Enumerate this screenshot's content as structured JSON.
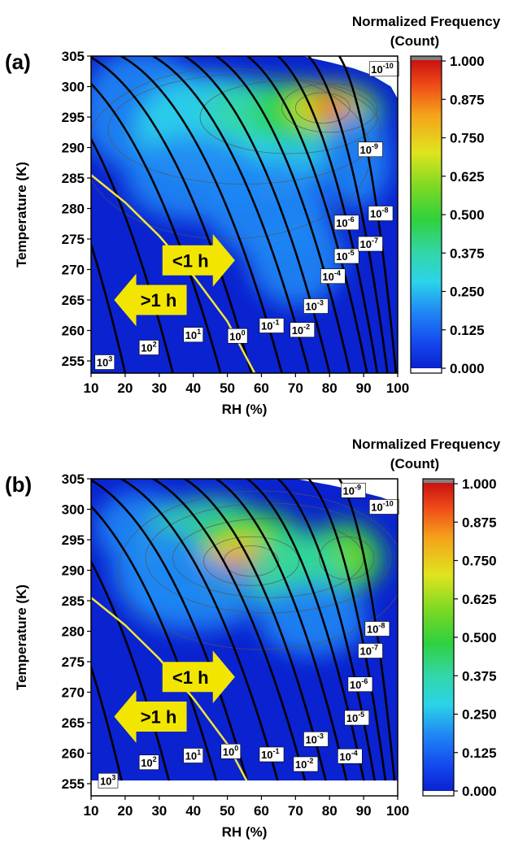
{
  "figure": {
    "cbar_title_line1": "Normalized Frequency",
    "cbar_title_line2": "(Count)"
  },
  "chart_data": [
    {
      "type": "heatmap",
      "panel": "(a)",
      "xlabel": "RH (%)",
      "ylabel": "Temperature (K)",
      "xlim": [
        10,
        100
      ],
      "ylim": [
        253,
        305
      ],
      "xticks": [
        10,
        20,
        30,
        40,
        50,
        60,
        70,
        80,
        90,
        100
      ],
      "yticks": [
        255,
        260,
        265,
        270,
        275,
        280,
        285,
        290,
        295,
        300,
        305
      ],
      "colorbar": {
        "title": "Normalized Frequency (Count)",
        "ticks": [
          "1.000",
          "0.875",
          "0.750",
          "0.625",
          "0.500",
          "0.375",
          "0.250",
          "0.125",
          "0.000"
        ]
      },
      "colors": {
        "low": "#0a2cd8",
        "high": "#d01010",
        "threshold_curve": "#f2e53a",
        "contours": "#000000"
      },
      "density_peaks": [
        {
          "rh": 80,
          "t": 296.5,
          "value": 1.0
        },
        {
          "rh": 60,
          "t": 294,
          "value": 0.45
        }
      ],
      "contour_labels": [
        {
          "text": "10",
          "exp": "3",
          "rh": 14,
          "t": 254.8
        },
        {
          "text": "10",
          "exp": "2",
          "rh": 27,
          "t": 257.2
        },
        {
          "text": "10",
          "exp": "1",
          "rh": 40,
          "t": 259.3
        },
        {
          "text": "10",
          "exp": "0",
          "rh": 53,
          "t": 259.1
        },
        {
          "text": "10",
          "exp": "-1",
          "rh": 63,
          "t": 260.8
        },
        {
          "text": "10",
          "exp": "-2",
          "rh": 72,
          "t": 260.1
        },
        {
          "text": "10",
          "exp": "-3",
          "rh": 76,
          "t": 264
        },
        {
          "text": "10",
          "exp": "-4",
          "rh": 81,
          "t": 268.9
        },
        {
          "text": "10",
          "exp": "-5",
          "rh": 85,
          "t": 272.2
        },
        {
          "text": "10",
          "exp": "-6",
          "rh": 85,
          "t": 277.7
        },
        {
          "text": "10",
          "exp": "-7",
          "rh": 92,
          "t": 274.2
        },
        {
          "text": "10",
          "exp": "-8",
          "rh": 95,
          "t": 279.2
        },
        {
          "text": "10",
          "exp": "-9",
          "rh": 92,
          "t": 289.7
        },
        {
          "text": "10",
          "exp": "-10",
          "rh": 96,
          "t": 302.9
        }
      ],
      "threshold_curve": {
        "label": "1 h",
        "points": [
          [
            10,
            285.5
          ],
          [
            20,
            281
          ],
          [
            30,
            275.5
          ],
          [
            40,
            269
          ],
          [
            50,
            261.5
          ],
          [
            58,
            253
          ]
        ]
      },
      "annotations": [
        {
          "text": "<1 h",
          "rh": 43,
          "t": 271.5
        },
        {
          "text": ">1 h",
          "rh": 26,
          "t": 265
        }
      ]
    },
    {
      "type": "heatmap",
      "panel": "(b)",
      "xlabel": "RH (%)",
      "ylabel": "Temperature (K)",
      "xlim": [
        10,
        100
      ],
      "ylim": [
        253,
        305
      ],
      "xticks": [
        10,
        20,
        30,
        40,
        50,
        60,
        70,
        80,
        90,
        100
      ],
      "yticks": [
        255,
        260,
        265,
        270,
        275,
        280,
        285,
        290,
        295,
        300,
        305
      ],
      "colorbar": {
        "title": "Normalized Frequency (Count)",
        "ticks": [
          "1.000",
          "0.875",
          "0.750",
          "0.625",
          "0.500",
          "0.375",
          "0.250",
          "0.125",
          "0.000"
        ]
      },
      "colors": {
        "low": "#0a2cd8",
        "high": "#d01010",
        "threshold_curve": "#f2e53a",
        "contours": "#000000"
      },
      "density_peaks": [
        {
          "rh": 57,
          "t": 291.5,
          "value": 1.0
        },
        {
          "rh": 85,
          "t": 292,
          "value": 0.65
        }
      ],
      "contour_labels": [
        {
          "text": "10",
          "exp": "3",
          "rh": 15,
          "t": 255.5
        },
        {
          "text": "10",
          "exp": "2",
          "rh": 27,
          "t": 258.5
        },
        {
          "text": "10",
          "exp": "1",
          "rh": 40,
          "t": 259.6
        },
        {
          "text": "10",
          "exp": "0",
          "rh": 51,
          "t": 260.3
        },
        {
          "text": "10",
          "exp": "-1",
          "rh": 63,
          "t": 259.8
        },
        {
          "text": "10",
          "exp": "-2",
          "rh": 73,
          "t": 258.2
        },
        {
          "text": "10",
          "exp": "-3",
          "rh": 76,
          "t": 262.3
        },
        {
          "text": "10",
          "exp": "-4",
          "rh": 86,
          "t": 259.5
        },
        {
          "text": "10",
          "exp": "-5",
          "rh": 88,
          "t": 265.8
        },
        {
          "text": "10",
          "exp": "-6",
          "rh": 89,
          "t": 271.3
        },
        {
          "text": "10",
          "exp": "-7",
          "rh": 92,
          "t": 276.8
        },
        {
          "text": "10",
          "exp": "-8",
          "rh": 94,
          "t": 280.4
        },
        {
          "text": "10",
          "exp": "-9",
          "rh": 87,
          "t": 303.1
        },
        {
          "text": "10",
          "exp": "-10",
          "rh": 96,
          "t": 300.4
        }
      ],
      "threshold_curve": {
        "label": "1 h",
        "points": [
          [
            10,
            285.5
          ],
          [
            20,
            281
          ],
          [
            30,
            275.5
          ],
          [
            40,
            269
          ],
          [
            50,
            261.5
          ],
          [
            58,
            253
          ]
        ]
      },
      "annotations": [
        {
          "text": "<1 h",
          "rh": 43,
          "t": 272.5
        },
        {
          "text": ">1 h",
          "rh": 26,
          "t": 266
        }
      ]
    }
  ]
}
